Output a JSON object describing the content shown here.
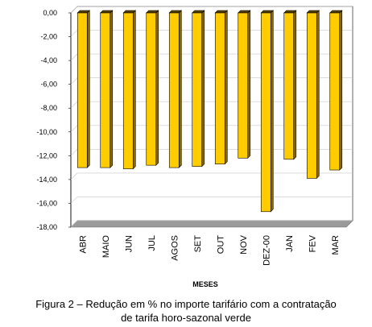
{
  "chart_data": {
    "type": "bar",
    "categories": [
      "ABR",
      "MAIO",
      "JUN",
      "JUL",
      "AGOS",
      "SET",
      "OUT",
      "NOV",
      "DEZ-00",
      "JAN",
      "FEV",
      "MAR"
    ],
    "values": [
      -13.0,
      -13.0,
      -13.1,
      -12.8,
      -13.0,
      -12.9,
      -12.7,
      -12.2,
      -16.7,
      -12.3,
      -13.9,
      -13.2
    ],
    "title": "",
    "xlabel": "MESES",
    "ylabel": "",
    "ylim": [
      -18,
      0
    ],
    "y_ticks": [
      "0,00",
      "-2,00",
      "-4,00",
      "-6,00",
      "-8,00",
      "-10,00",
      "-12,00",
      "-14,00",
      "-16,00",
      "-18,00"
    ],
    "grid": true,
    "legend": "none",
    "bar_color": "#FFCC00",
    "bar_side_color": "#8C6A00"
  },
  "caption": {
    "line1": "Figura 2 – Redução em % no importe tarifário com a contratação",
    "line2": "de tarifa horo-sazonal verde"
  }
}
